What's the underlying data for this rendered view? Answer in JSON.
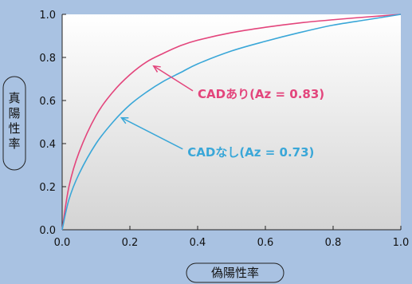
{
  "chart_data": {
    "type": "line",
    "xlabel": "偽陽性率",
    "ylabel": "真陽性率",
    "xlim": [
      0.0,
      1.0
    ],
    "ylim": [
      0.0,
      1.0
    ],
    "xticks": [
      "0.0",
      "0.2",
      "0.4",
      "0.6",
      "0.8",
      "1.0"
    ],
    "yticks": [
      "0.0",
      "0.2",
      "0.4",
      "0.6",
      "0.8",
      "1.0"
    ],
    "grid": false,
    "series": [
      {
        "name": "CADあり(Az = 0.83)",
        "color": "#e3457c",
        "label_at": [
          0.4,
          0.63
        ],
        "arrow_to": [
          0.27,
          0.76
        ],
        "x": [
          0.0,
          0.02,
          0.05,
          0.1,
          0.15,
          0.2,
          0.25,
          0.3,
          0.35,
          0.4,
          0.5,
          0.6,
          0.7,
          0.8,
          0.9,
          1.0
        ],
        "y": [
          0.0,
          0.2,
          0.36,
          0.53,
          0.64,
          0.72,
          0.78,
          0.82,
          0.855,
          0.88,
          0.915,
          0.94,
          0.96,
          0.975,
          0.988,
          1.0
        ]
      },
      {
        "name": "CADなし(Az = 0.73)",
        "color": "#3aa7d8",
        "label_at": [
          0.37,
          0.36
        ],
        "arrow_to": [
          0.175,
          0.52
        ],
        "x": [
          0.0,
          0.02,
          0.05,
          0.1,
          0.15,
          0.2,
          0.25,
          0.3,
          0.35,
          0.4,
          0.5,
          0.6,
          0.7,
          0.8,
          0.9,
          1.0
        ],
        "y": [
          0.0,
          0.14,
          0.26,
          0.4,
          0.5,
          0.58,
          0.64,
          0.69,
          0.73,
          0.77,
          0.83,
          0.875,
          0.915,
          0.95,
          0.975,
          1.0
        ]
      }
    ]
  }
}
